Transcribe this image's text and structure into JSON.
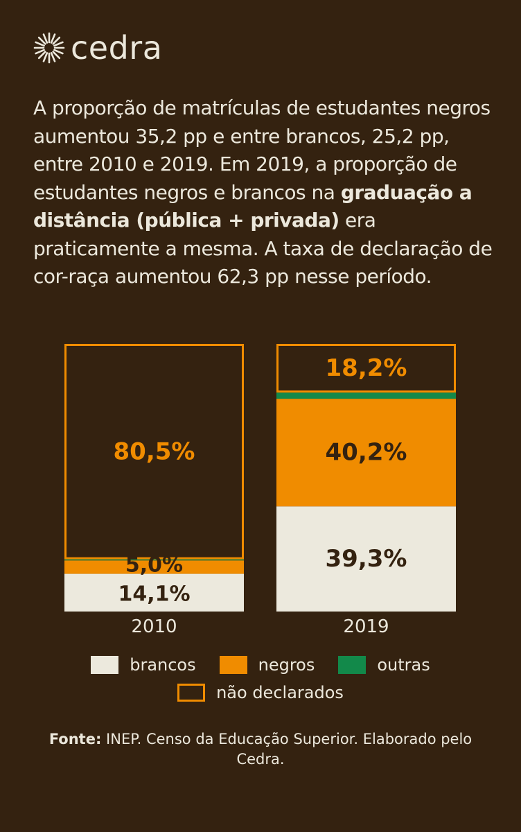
{
  "brand": {
    "name": "cedra",
    "logo_icon": "sun-burst-icon"
  },
  "intro": {
    "part1": "A proporção de matrículas de estudantes negros aumentou 35,2 pp e entre brancos, 25,2 pp, entre 2010 e 2019. Em 2019, a proporção de estudantes negros e brancos na ",
    "bold": "graduação a distância (pública + privada)",
    "part2": " era praticamente a mesma. A taxa de declaração de cor-raça aumentou 62,3 pp nesse período."
  },
  "colors": {
    "background": "#342210",
    "brancos": "#ece9dd",
    "negros": "#f08c00",
    "outras": "#12894a",
    "nao_declarados_border": "#f08c00",
    "text_light": "#ece8dc",
    "text_dark": "#342210"
  },
  "chart_data": {
    "type": "bar",
    "stacked": true,
    "categories": [
      "2010",
      "2019"
    ],
    "series": [
      {
        "name": "brancos",
        "key": "brancos",
        "values": [
          14.1,
          39.3
        ],
        "labels": [
          "14,1%",
          "39,3%"
        ]
      },
      {
        "name": "negros",
        "key": "negros",
        "values": [
          5.0,
          40.2
        ],
        "labels": [
          "5,0%",
          "40,2%"
        ]
      },
      {
        "name": "outras",
        "key": "outras",
        "values": [
          0.4,
          2.3
        ],
        "labels": [
          "",
          ""
        ]
      },
      {
        "name": "não declarados",
        "key": "nao_declarados",
        "values": [
          80.5,
          18.2
        ],
        "labels": [
          "80,5%",
          "18,2%"
        ]
      }
    ],
    "ylim": [
      0,
      100
    ]
  },
  "legend": {
    "brancos": "brancos",
    "negros": "negros",
    "outras": "outras",
    "nao_declarados": "não declarados"
  },
  "source": {
    "label": "Fonte:",
    "text": " INEP. Censo da Educação Superior. Elaborado pelo Cedra."
  }
}
